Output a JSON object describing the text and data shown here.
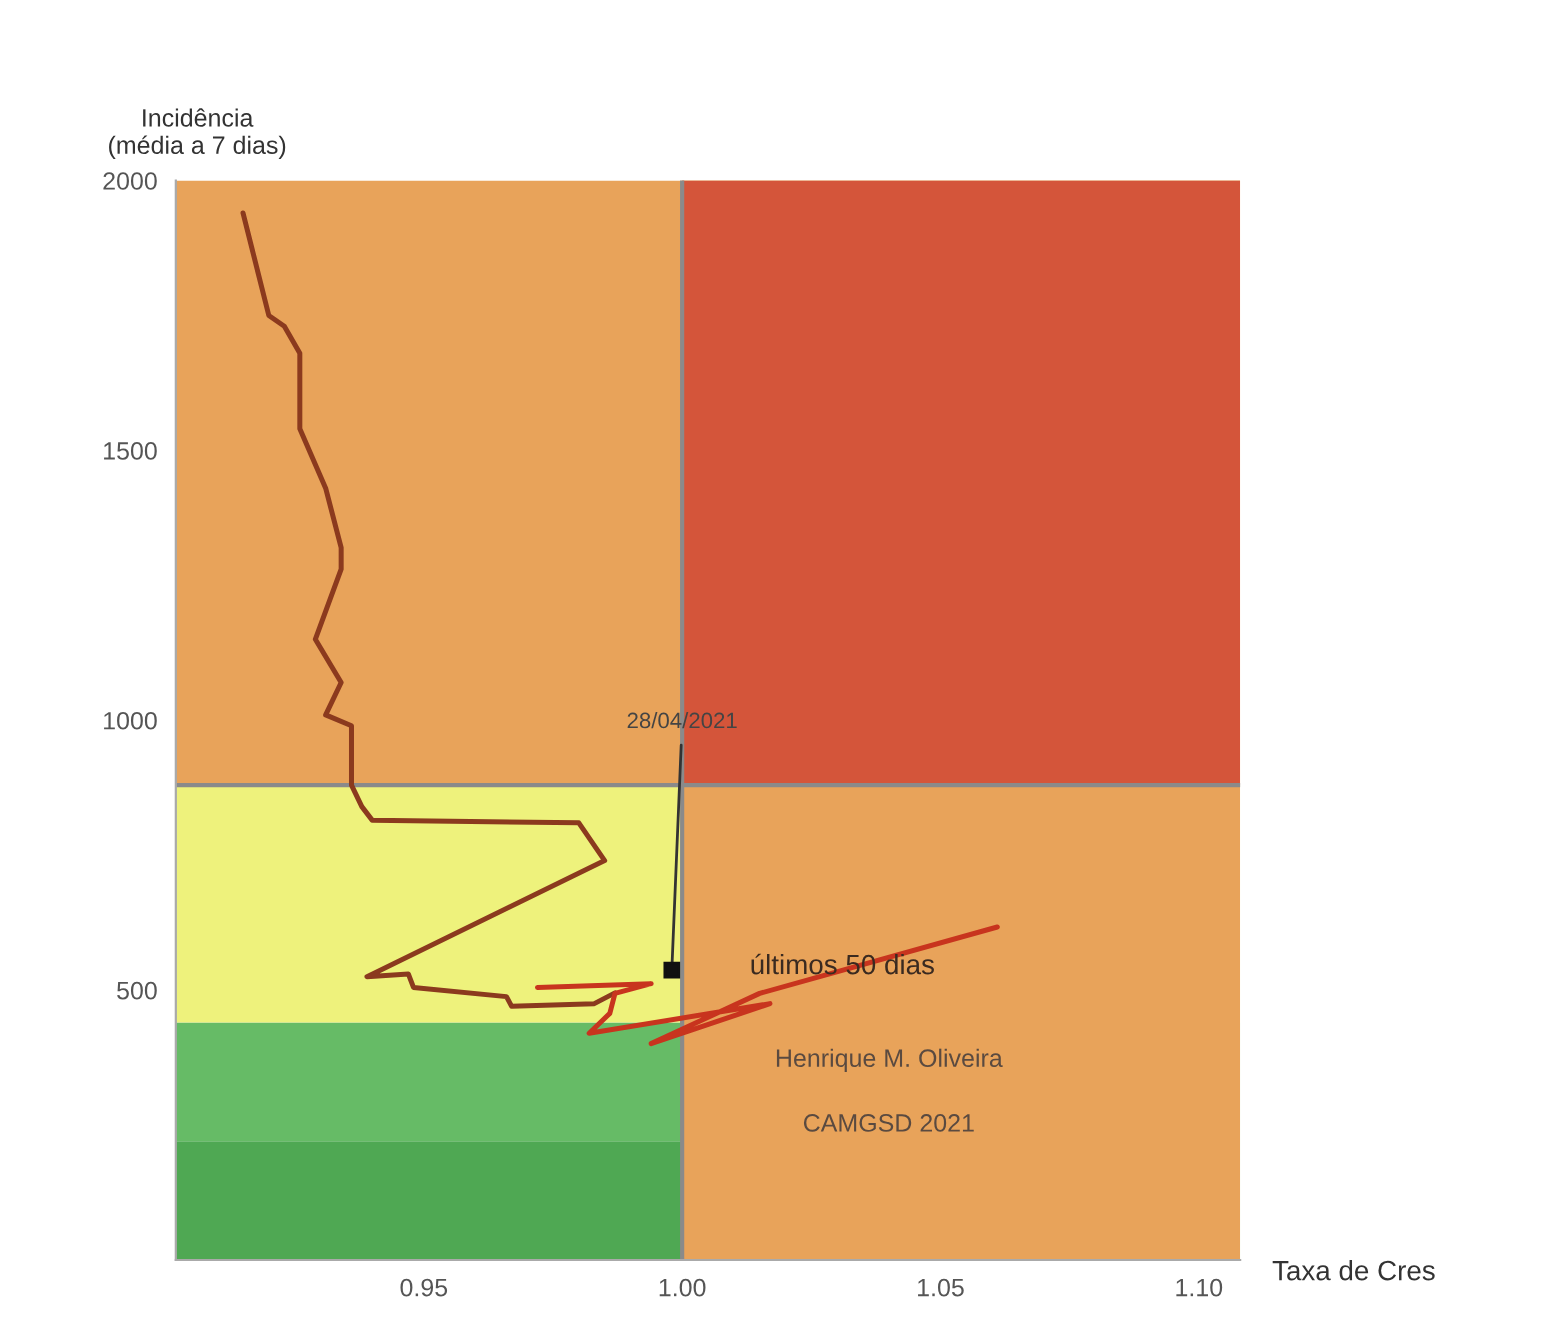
{
  "chart_data": {
    "type": "line",
    "xlabel": "Taxa de Cres",
    "ylabel": "Incidência\n(média a 7 dias)",
    "series": [
      {
        "color": "#8b3a1e",
        "x": [
          0.915,
          0.92,
          0.923,
          0.926,
          0.926,
          0.931,
          0.934,
          0.934,
          0.929,
          0.934,
          0.931,
          0.936,
          0.936,
          0.938,
          0.94,
          0.98,
          0.985,
          0.939,
          0.947,
          0.948,
          0.966,
          0.967,
          0.983,
          0.987
        ],
        "values": [
          1940,
          1750,
          1730,
          1680,
          1540,
          1430,
          1320,
          1280,
          1150,
          1070,
          1010,
          990,
          880,
          840,
          815,
          810,
          740,
          525,
          530,
          505,
          488,
          470,
          475,
          495
        ]
      },
      {
        "name": "últimos 50 dias",
        "color": "#c8341e",
        "x": [
          0.972,
          0.994,
          0.987,
          0.986,
          0.982,
          1.017,
          0.994,
          1.015,
          1.061
        ],
        "values": [
          505,
          512,
          494,
          457,
          420,
          475,
          401,
          494,
          617
        ]
      }
    ],
    "xlim": [
      0.902,
      1.108
    ],
    "ylim": [
      0,
      2000
    ],
    "xticks": [
      {
        "value": 0.95,
        "label": "0.95"
      },
      {
        "value": 1.0,
        "label": "1.00"
      },
      {
        "value": 1.05,
        "label": "1.05"
      },
      {
        "value": 1.1,
        "label": "1.10"
      }
    ],
    "yticks": [
      500,
      1000,
      1500,
      2000
    ],
    "ref_lines": [
      {
        "axis": "x",
        "value": 1.0,
        "color": "#8a8a8a"
      },
      {
        "axis": "y",
        "value": 880,
        "color": "#8a8a8a"
      }
    ],
    "bands": [
      {
        "axis": "y",
        "from": 0,
        "to": 220,
        "color": "#4fa853"
      },
      {
        "axis": "y",
        "from": 220,
        "to": 440,
        "color": "#66bb66"
      },
      {
        "axis": "y",
        "from": 440,
        "to": 880,
        "color": "#eef27c"
      },
      {
        "axis": "y",
        "from": 880,
        "to": 2000,
        "color": "#e8a35a"
      },
      {
        "axis": "x",
        "from": 1.0,
        "to": 1.108,
        "color": "#e8a35a"
      },
      {
        "axis": "y",
        "from": 880,
        "to": 2000,
        "color": "#d4553a"
      }
    ],
    "annotations": [
      {
        "text": "28/04/2021",
        "x": 0.998,
        "y": 537
      },
      "Henrique M. Oliveira",
      "CAMGSD 2021"
    ],
    "grid": false,
    "legend": false
  }
}
